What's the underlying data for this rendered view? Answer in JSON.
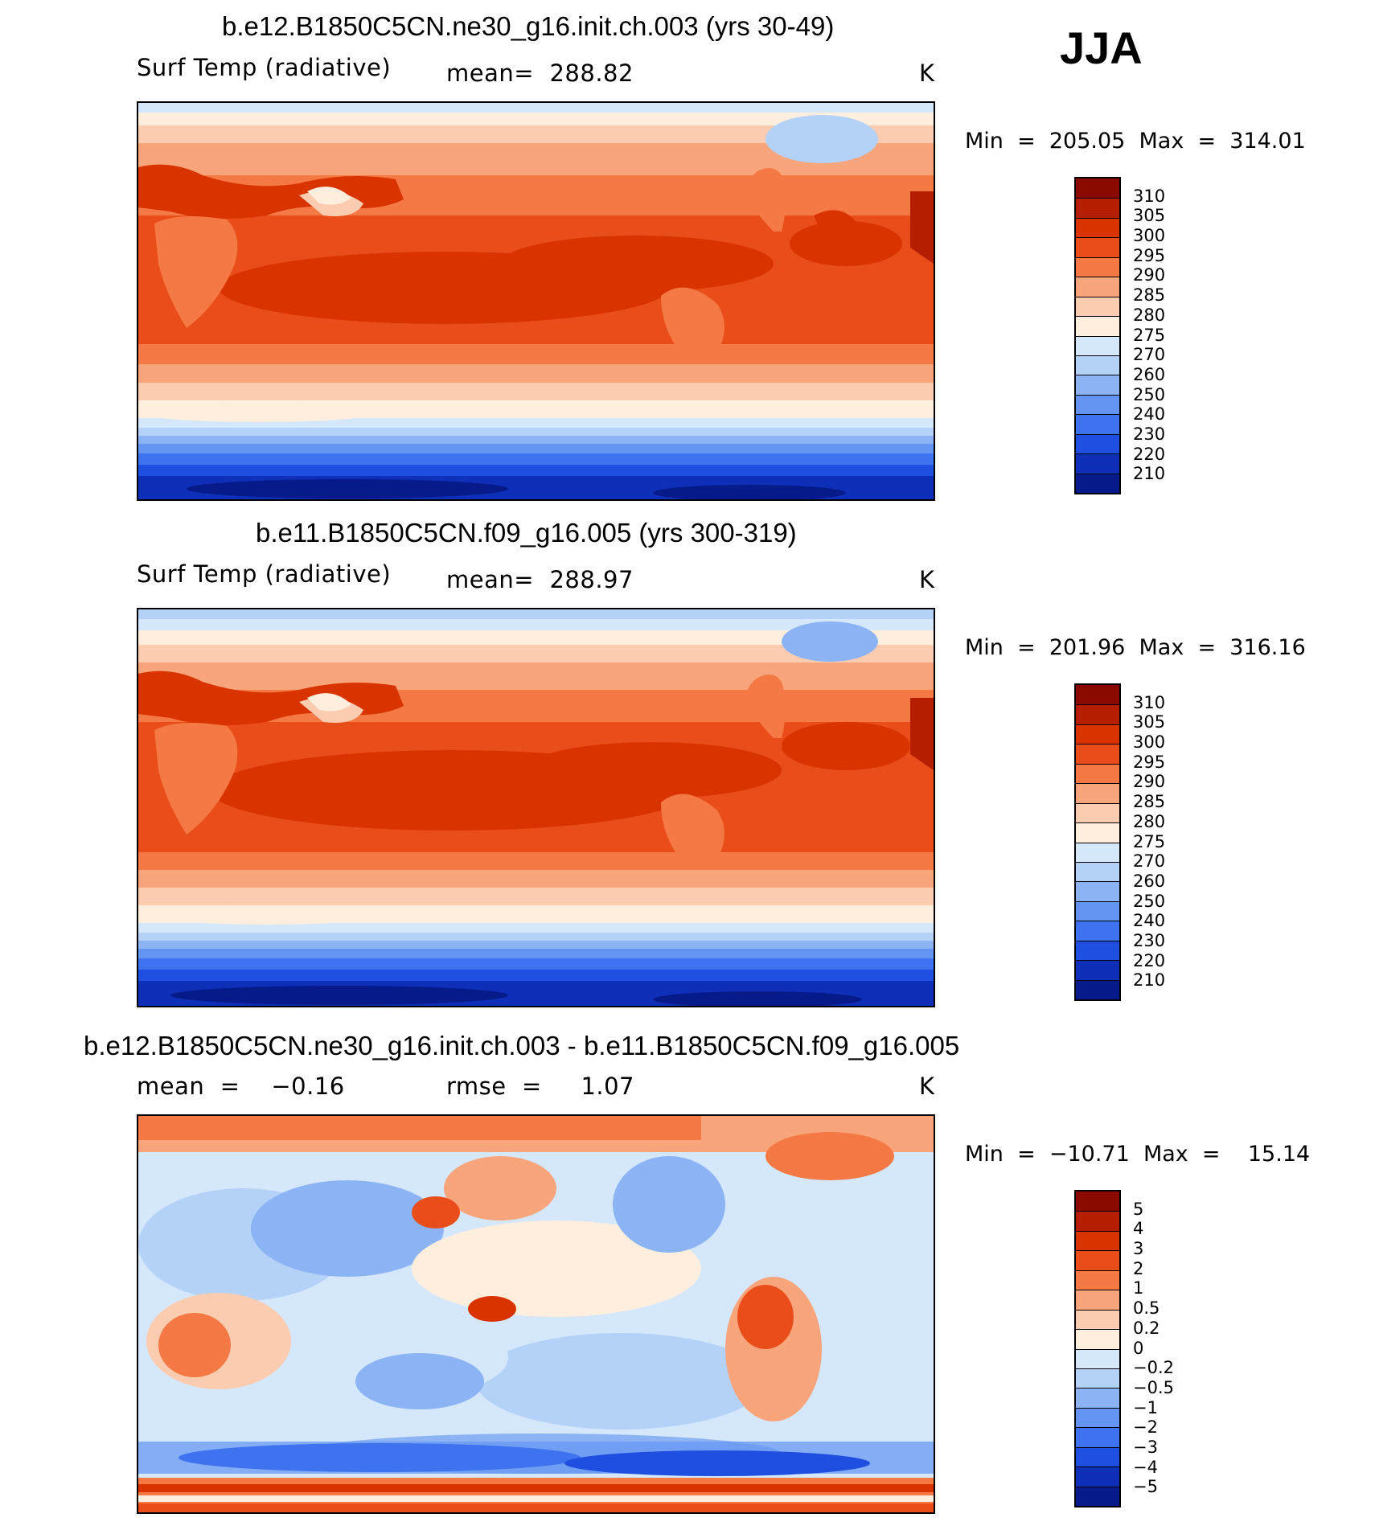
{
  "season": "JJA",
  "palette_abs": [
    "#8b0a00",
    "#b51e00",
    "#d93300",
    "#e94e1a",
    "#f47944",
    "#f9a57c",
    "#fcccb0",
    "#fdeedd",
    "#d5e8fb",
    "#b4d1f7",
    "#8cb4f4",
    "#6394f2",
    "#3e72ee",
    "#1f4fe0",
    "#0e30b8",
    "#061a8a"
  ],
  "palette_diff": [
    "#8b0a00",
    "#b51e00",
    "#d93300",
    "#e94e1a",
    "#f47944",
    "#f9a57c",
    "#fcccb0",
    "#fdeedd",
    "#d5e8fb",
    "#b4d1f7",
    "#8cb4f4",
    "#6394f2",
    "#3e72ee",
    "#1f4fe0",
    "#0e30b8",
    "#061a8a"
  ],
  "panels": [
    {
      "title": "b.e12.B1850C5CN.ne30_g16.init.ch.003 (yrs 30-49)",
      "left_label": "Surf Temp (radiative)",
      "center_label": "mean=  288.82",
      "units": "K",
      "minmax": "Min  =  205.05  Max  =  314.01",
      "colorbar_labels": [
        "310",
        "305",
        "300",
        "295",
        "290",
        "285",
        "280",
        "275",
        "270",
        "260",
        "250",
        "240",
        "230",
        "220",
        "210"
      ],
      "kind": "abs"
    },
    {
      "title": "b.e11.B1850C5CN.f09_g16.005 (yrs 300-319)",
      "left_label": "Surf Temp (radiative)",
      "center_label": "mean=  288.97",
      "units": "K",
      "minmax": "Min  =  201.96  Max  =  316.16",
      "colorbar_labels": [
        "310",
        "305",
        "300",
        "295",
        "290",
        "285",
        "280",
        "275",
        "270",
        "260",
        "250",
        "240",
        "230",
        "220",
        "210"
      ],
      "kind": "abs"
    },
    {
      "title": "b.e12.B1850C5CN.ne30_g16.init.ch.003 - b.e11.B1850C5CN.f09_g16.005",
      "left_label": "mean  =    −0.16",
      "center_label": "rmse  =     1.07",
      "units": "K",
      "minmax": "Min  =  −10.71  Max  =    15.14",
      "colorbar_labels": [
        "5",
        "4",
        "3",
        "2",
        "1",
        "0.5",
        "0.2",
        "0",
        "−0.2",
        "−0.5",
        "−1",
        "−2",
        "−3",
        "−4",
        "−5"
      ],
      "kind": "diff"
    }
  ]
}
